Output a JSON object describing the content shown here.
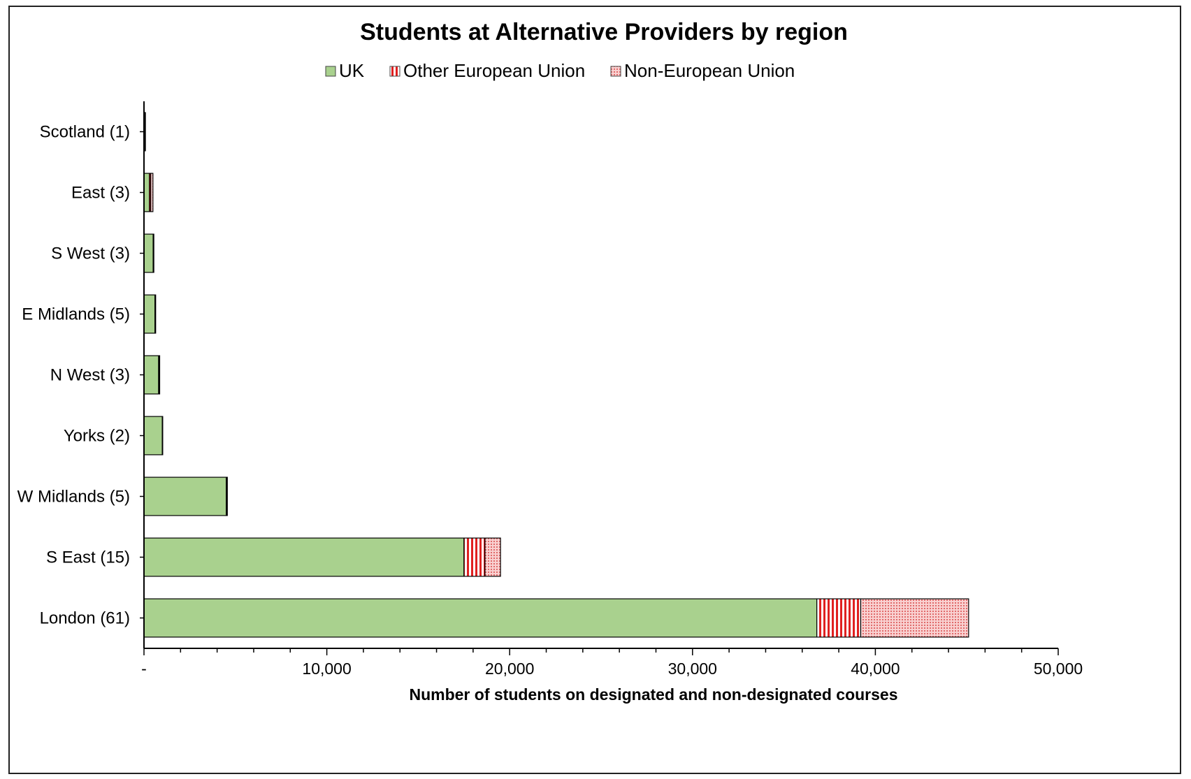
{
  "chart_data": {
    "type": "bar",
    "orientation": "horizontal",
    "stacked": true,
    "title": "Students at Alternative Providers by region",
    "xlabel": "Number of students on designated and non-designated courses",
    "ylabel": "",
    "xlim": [
      0,
      50000
    ],
    "x_ticks": [
      0,
      10000,
      20000,
      30000,
      40000,
      50000
    ],
    "x_tick_labels": [
      "-",
      "10,000",
      "20,000",
      "30,000",
      "40,000",
      "50,000"
    ],
    "legend_position": "top",
    "grid": false,
    "categories": [
      "Scotland (1)",
      "East (3)",
      "S West (3)",
      "E Midlands (5)",
      "N West (3)",
      "Yorks (2)",
      "W Midlands (5)",
      "S East (15)",
      "London (61)"
    ],
    "series": [
      {
        "name": "UK",
        "color": "#a9d18e",
        "pattern": "solid",
        "values": [
          50,
          300,
          500,
          600,
          800,
          1000,
          4500,
          17500,
          36800
        ]
      },
      {
        "name": "Other European Union",
        "color": "#e02020",
        "pattern": "vertical-stripes",
        "values": [
          10,
          70,
          20,
          20,
          30,
          5,
          30,
          1150,
          2400
        ]
      },
      {
        "name": "Non-European Union",
        "color": "#f4b6b6",
        "pattern": "dotted",
        "values": [
          10,
          120,
          20,
          20,
          30,
          5,
          30,
          850,
          5900
        ]
      }
    ]
  }
}
